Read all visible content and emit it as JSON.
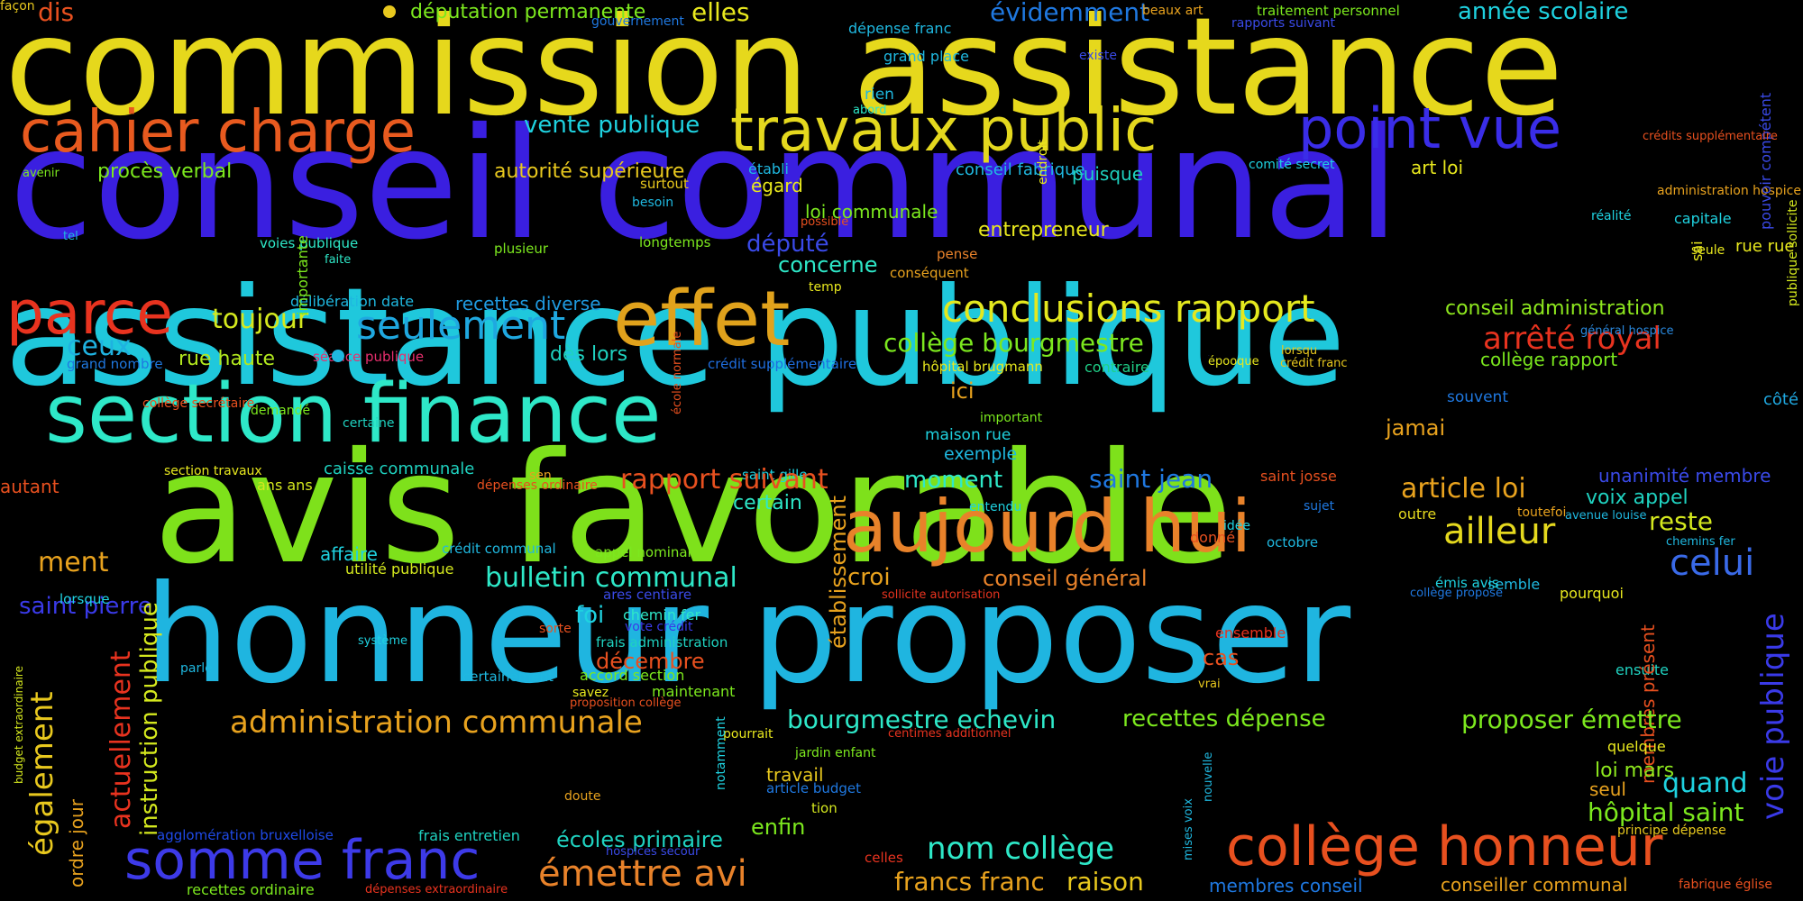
{
  "words": [
    {
      "text": "commission assistance",
      "color": "#e6d81c"
    },
    {
      "text": "conseil communal",
      "color": "#3a1fe0"
    },
    {
      "text": "assistance publique",
      "color": "#1fc8dc"
    },
    {
      "text": "avis favorable",
      "color": "#7ee11b"
    },
    {
      "text": "honneur proposer",
      "color": "#1fb5e0"
    },
    {
      "text": "section finance",
      "color": "#2ee8c8"
    },
    {
      "text": "aujourd hui",
      "color": "#e8822a"
    },
    {
      "text": "effet",
      "color": "#e0a21c"
    },
    {
      "text": "travaux public",
      "color": "#e4d81e"
    },
    {
      "text": "point vue",
      "color": "#3a2de8"
    },
    {
      "text": "cahier charge",
      "color": "#e85a1f"
    },
    {
      "text": "parce",
      "color": "#e8331f"
    },
    {
      "text": "somme franc",
      "color": "#3d3ae8"
    },
    {
      "text": "collège honneur",
      "color": "#e8501f"
    },
    {
      "text": "conclusions rapport",
      "color": "#e4e81e"
    },
    {
      "text": "seulement",
      "color": "#1fa8e0"
    },
    {
      "text": "toujour",
      "color": "#d4e81e"
    },
    {
      "text": "ceux",
      "color": "#1fb2e0"
    },
    {
      "text": "rue haute",
      "color": "#b2e81e"
    },
    {
      "text": "grand nombre",
      "color": "#1f78e0"
    },
    {
      "text": "séance publique",
      "color": "#e82f6e"
    },
    {
      "text": "délibération date",
      "color": "#1fb8e0"
    },
    {
      "text": "recettes diverse",
      "color": "#1f9ae0"
    },
    {
      "text": "collège bourgmestre",
      "color": "#7ce81e"
    },
    {
      "text": "arrêté royal",
      "color": "#e8331f"
    },
    {
      "text": "conseil administration",
      "color": "#8ee81e"
    },
    {
      "text": "collège rapport",
      "color": "#7be81e"
    },
    {
      "text": "général hospice",
      "color": "#2a8ae0"
    },
    {
      "text": "crédit supplémentaire",
      "color": "#1f6ee0"
    },
    {
      "text": "hôpital brugmann",
      "color": "#e8e81e"
    },
    {
      "text": "contraire",
      "color": "#1fd088"
    },
    {
      "text": "crédit franc",
      "color": "#e8c81e"
    },
    {
      "text": "côté",
      "color": "#1fa8e0"
    },
    {
      "text": "ici",
      "color": "#e8a21e"
    },
    {
      "text": "maison rue",
      "color": "#1fd2e0"
    },
    {
      "text": "exemple",
      "color": "#1fb8e0"
    },
    {
      "text": "important",
      "color": "#7ae81e"
    },
    {
      "text": "moment",
      "color": "#2ee8c8"
    },
    {
      "text": "jamai",
      "color": "#e8a21e"
    },
    {
      "text": "souvent",
      "color": "#1f78e0"
    },
    {
      "text": "saint jean",
      "color": "#1f78e0"
    },
    {
      "text": "saint josse",
      "color": "#e8501f"
    },
    {
      "text": "unanimité membre",
      "color": "#3a4ae8"
    },
    {
      "text": "article loi",
      "color": "#e8a21e"
    },
    {
      "text": "voix appel",
      "color": "#1fd2c0"
    },
    {
      "text": "reste",
      "color": "#d4e81e"
    },
    {
      "text": "ailleur",
      "color": "#e4d81e"
    },
    {
      "text": "celui",
      "color": "#3a6ae8"
    },
    {
      "text": "voie publique",
      "color": "#3a3ae8"
    },
    {
      "text": "chemins fer",
      "color": "#1fb8e0"
    },
    {
      "text": "outre",
      "color": "#e4d81e"
    },
    {
      "text": "toutefoi",
      "color": "#e8a21e"
    },
    {
      "text": "avenue louise",
      "color": "#1fb8e0"
    },
    {
      "text": "sujet",
      "color": "#1f78e0"
    },
    {
      "text": "idée",
      "color": "#1fd2e0"
    },
    {
      "text": "donné",
      "color": "#e8501f"
    },
    {
      "text": "octobre",
      "color": "#1fb8e0"
    },
    {
      "text": "croi",
      "color": "#e8a21e"
    },
    {
      "text": "conseil général",
      "color": "#e8822a"
    },
    {
      "text": "sollicite autorisation",
      "color": "#e8331f"
    },
    {
      "text": "semble",
      "color": "#1fb8e0"
    },
    {
      "text": "émis avis",
      "color": "#1fd2e0"
    },
    {
      "text": "collège propose",
      "color": "#1f78e0"
    },
    {
      "text": "pourquoi",
      "color": "#e8e81e"
    },
    {
      "text": "ensemble",
      "color": "#e8331f"
    },
    {
      "text": "cas",
      "color": "#e8501f"
    },
    {
      "text": "vrai",
      "color": "#e8c81e"
    },
    {
      "text": "ensuite",
      "color": "#1fd2c0"
    },
    {
      "text": "membres présent",
      "color": "#e8501f"
    },
    {
      "text": "quelque",
      "color": "#e8e81e"
    },
    {
      "text": "quand",
      "color": "#1fd2e0"
    },
    {
      "text": "loi mars",
      "color": "#8ee81e"
    },
    {
      "text": "seul",
      "color": "#e8a21e"
    },
    {
      "text": "hôpital saint",
      "color": "#7ce81e"
    },
    {
      "text": "principe dépense",
      "color": "#e8c81e"
    },
    {
      "text": "fabrique église",
      "color": "#e8501f"
    },
    {
      "text": "conseiller communal",
      "color": "#e8a21e"
    },
    {
      "text": "membres conseil",
      "color": "#1f78e0"
    },
    {
      "text": "francs franc",
      "color": "#e8a21e"
    },
    {
      "text": "raison",
      "color": "#e8c81e"
    },
    {
      "text": "nom collège",
      "color": "#2ee8c8"
    },
    {
      "text": "émettre avi",
      "color": "#e8822a"
    },
    {
      "text": "écoles primaire",
      "color": "#1fd2c0"
    },
    {
      "text": "enfin",
      "color": "#7ce81e"
    },
    {
      "text": "tion",
      "color": "#d4e81e"
    },
    {
      "text": "travail",
      "color": "#e8c81e"
    },
    {
      "text": "article budget",
      "color": "#1f78e0"
    },
    {
      "text": "jardin enfant",
      "color": "#7ce81e"
    },
    {
      "text": "centimes additionnel",
      "color": "#e8331f"
    },
    {
      "text": "pourrait",
      "color": "#e8e81e"
    },
    {
      "text": "celles",
      "color": "#e8331f"
    },
    {
      "text": "hospices secour",
      "color": "#3a4ae8"
    },
    {
      "text": "recettes dépense",
      "color": "#7ce81e"
    },
    {
      "text": "proposer émettre",
      "color": "#7ce81e"
    },
    {
      "text": "bourgmestre echevin",
      "color": "#2ee8c8"
    },
    {
      "text": "administration communale",
      "color": "#e8a21e"
    },
    {
      "text": "décembre",
      "color": "#e8501f"
    },
    {
      "text": "maintenant",
      "color": "#7ce81e"
    },
    {
      "text": "savez",
      "color": "#e8e81e"
    },
    {
      "text": "proposition collège",
      "color": "#e8501f"
    },
    {
      "text": "accord section",
      "color": "#7ce81e"
    },
    {
      "text": "certainement",
      "color": "#1fb8e0"
    },
    {
      "text": "doute",
      "color": "#e8a21e"
    },
    {
      "text": "dépenses extraordinaire",
      "color": "#e8331f"
    },
    {
      "text": "recettes ordinaire",
      "color": "#7ce81e"
    },
    {
      "text": "frais entretien",
      "color": "#1fd2c0"
    },
    {
      "text": "agglomération bruxelloise",
      "color": "#1f4ae8"
    },
    {
      "text": "parle",
      "color": "#1fb8e0"
    },
    {
      "text": "système",
      "color": "#1fd2e0"
    },
    {
      "text": "sorte",
      "color": "#e8501f"
    },
    {
      "text": "foi",
      "color": "#1fd2e0"
    },
    {
      "text": "vote crédit",
      "color": "#3a3ae8"
    },
    {
      "text": "chemin fer",
      "color": "#2ee8c8"
    },
    {
      "text": "frais administration",
      "color": "#1fd2c0"
    },
    {
      "text": "ares centiare",
      "color": "#3a4ae8"
    },
    {
      "text": "bulletin communal",
      "color": "#2ee8c8"
    },
    {
      "text": "appel nominal",
      "color": "#7ce81e"
    },
    {
      "text": "crédit communal",
      "color": "#1fb8e0"
    },
    {
      "text": "utilité publique",
      "color": "#d4e81e"
    },
    {
      "text": "affaire",
      "color": "#1fd2e0"
    },
    {
      "text": "ment",
      "color": "#e8a21e"
    },
    {
      "text": "saint pierre",
      "color": "#3a3ae8"
    },
    {
      "text": "lorsque",
      "color": "#1fd2e0"
    },
    {
      "text": "autant",
      "color": "#e8501f"
    },
    {
      "text": "section travaux",
      "color": "#e8e81e"
    },
    {
      "text": "caisse communale",
      "color": "#1fd2c0"
    },
    {
      "text": "ans ans",
      "color": "#d4e81e"
    },
    {
      "text": "dépenses ordinaire",
      "color": "#e8501f"
    },
    {
      "text": "sen",
      "color": "#e8a21e"
    },
    {
      "text": "saint gille",
      "color": "#1fd2e0"
    },
    {
      "text": "rapport suivant",
      "color": "#e8501f"
    },
    {
      "text": "certain",
      "color": "#2ee8c8"
    },
    {
      "text": "entendu",
      "color": "#1fd2e0"
    },
    {
      "text": "collège secrétaire",
      "color": "#e8501f"
    },
    {
      "text": "demandé",
      "color": "#7ce81e"
    },
    {
      "text": "certaine",
      "color": "#1fd2c0"
    },
    {
      "text": "dès lors",
      "color": "#1fd2c0"
    },
    {
      "text": "lorsqu",
      "color": "#e8c81e"
    },
    {
      "text": "épooque",
      "color": "#e8e81e"
    },
    {
      "text": "pui",
      "color": "#3a4ae8"
    },
    {
      "text": "député",
      "color": "#3a4ae8"
    },
    {
      "text": "concerne",
      "color": "#2ee8c8"
    },
    {
      "text": "temp",
      "color": "#e8e81e"
    },
    {
      "text": "conséquent",
      "color": "#e8a21e"
    },
    {
      "text": "égard",
      "color": "#e8e81e"
    },
    {
      "text": "loi communale",
      "color": "#7ce81e"
    },
    {
      "text": "possible",
      "color": "#e8501f"
    },
    {
      "text": "entrepreneur",
      "color": "#e8e81e"
    },
    {
      "text": "pense",
      "color": "#e8822a"
    },
    {
      "text": "établi",
      "color": "#1fb8e0"
    },
    {
      "text": "conseil fabrique",
      "color": "#1fb8e0"
    },
    {
      "text": "puisque",
      "color": "#1fd2c0"
    },
    {
      "text": "comité secret",
      "color": "#1fd2e0"
    },
    {
      "text": "art loi",
      "color": "#e8e81e"
    },
    {
      "text": "administration hospice",
      "color": "#e8a21e"
    },
    {
      "text": "réalité",
      "color": "#1fd2e0"
    },
    {
      "text": "capitale",
      "color": "#1fd2e0"
    },
    {
      "text": "rue rue",
      "color": "#e8e81e"
    },
    {
      "text": "seule",
      "color": "#e8e81e"
    },
    {
      "text": "sai",
      "color": "#e8e81e"
    },
    {
      "text": "pouvoir compétent",
      "color": "#3a4ae8"
    },
    {
      "text": "publique sollicite",
      "color": "#d4e81e"
    },
    {
      "text": "crédits supplémentaire",
      "color": "#e8501f"
    },
    {
      "text": "vente publique",
      "color": "#1fd2e0"
    },
    {
      "text": "procès verbal",
      "color": "#7ce81e"
    },
    {
      "text": "autorité supérieure",
      "color": "#e8c81e"
    },
    {
      "text": "surtout",
      "color": "#e8c81e"
    },
    {
      "text": "besoin",
      "color": "#1fb8e0"
    },
    {
      "text": "longtemps",
      "color": "#7ce81e"
    },
    {
      "text": "plusieur",
      "color": "#7ce81e"
    },
    {
      "text": "voies publique",
      "color": "#2ee8c8"
    },
    {
      "text": "faite",
      "color": "#2ee8c8"
    },
    {
      "text": "importante",
      "color": "#7ce81e"
    },
    {
      "text": "tel",
      "color": "#1fb8e0"
    },
    {
      "text": "avenir",
      "color": "#7ce81e"
    },
    {
      "text": "dis",
      "color": "#e8501f"
    },
    {
      "text": "députation permanente",
      "color": "#7ce81e"
    },
    {
      "text": "gouvernement",
      "color": "#1f78e0"
    },
    {
      "text": "elles",
      "color": "#e8e81e"
    },
    {
      "text": "dépense franc",
      "color": "#1fb8e0"
    },
    {
      "text": "grand place",
      "color": "#1fb8e0"
    },
    {
      "text": "rien",
      "color": "#1fb8e0"
    },
    {
      "text": "abord",
      "color": "#2ee8c8"
    },
    {
      "text": "évidemment",
      "color": "#1f78e0"
    },
    {
      "text": "beaux art",
      "color": "#e8a21e"
    },
    {
      "text": "existe",
      "color": "#3a4ae8"
    },
    {
      "text": "endroit",
      "color": "#e8e81e"
    },
    {
      "text": "traitement personnel",
      "color": "#7ce81e"
    },
    {
      "text": "rapports suivant",
      "color": "#3a4ae8"
    },
    {
      "text": "année scolaire",
      "color": "#1fd2e0"
    },
    {
      "text": "instruction publique",
      "color": "#d4e81e"
    },
    {
      "text": "actuellement",
      "color": "#e8331f"
    },
    {
      "text": "également",
      "color": "#e8c81e"
    },
    {
      "text": "ordre jour",
      "color": "#e8a21e"
    },
    {
      "text": "budget extraordinaire",
      "color": "#d4e81e"
    },
    {
      "text": "établissement",
      "color": "#e8a21e"
    },
    {
      "text": "notamment",
      "color": "#1fd2e0"
    },
    {
      "text": "mises voix",
      "color": "#1fb8e0"
    },
    {
      "text": "nouvelle",
      "color": "#1fb8e0"
    },
    {
      "text": "école normale",
      "color": "#e8501f"
    },
    {
      "text": "façon",
      "color": "#e8c81e"
    }
  ]
}
